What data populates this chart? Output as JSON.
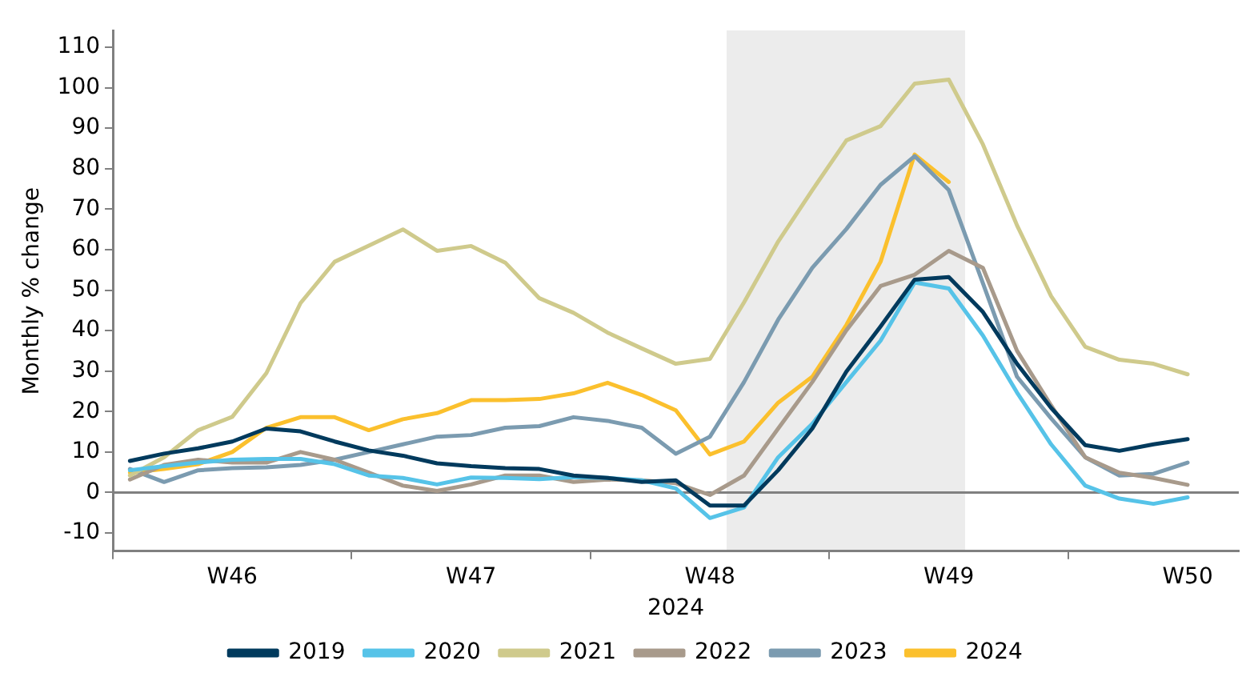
{
  "chart_data": {
    "type": "line",
    "xlabel": "2024",
    "ylabel": "Monthly % change",
    "categories": [
      null,
      null,
      null,
      "W46",
      null,
      null,
      null,
      null,
      null,
      null,
      "W47",
      null,
      null,
      null,
      null,
      null,
      null,
      "W48",
      null,
      null,
      null,
      null,
      null,
      null,
      "W49",
      null,
      null,
      null,
      null,
      null,
      null,
      "W50",
      null
    ],
    "ylim": [
      -14.5,
      114
    ],
    "yticks": [
      -10,
      0,
      10,
      20,
      30,
      40,
      50,
      60,
      70,
      80,
      90,
      100,
      110
    ],
    "grid": false,
    "legend": "bottom",
    "marker": "none",
    "line_style": "solid",
    "ref_lines": [
      {
        "axis": "y",
        "value": 0,
        "color": "#808080"
      }
    ],
    "series": [
      {
        "name": "2019",
        "color": "#003a5d",
        "values": [
          7.8,
          9.6,
          10.9,
          12.6,
          15.8,
          15.1,
          12.6,
          10.4,
          9.1,
          7.2,
          6.5,
          6,
          5.8,
          4.2,
          3.6,
          2.6,
          3,
          -3.2,
          -3.2,
          5.5,
          15.8,
          29.9,
          41,
          52.6,
          53.2,
          44.6,
          31.8,
          20.9,
          11.7,
          10.3,
          11.9,
          13.2,
          null
        ]
      },
      {
        "name": "2020",
        "color": "#56c3e8",
        "values": [
          5.5,
          6.5,
          7.4,
          8.1,
          8.3,
          8.3,
          7,
          4.2,
          3.6,
          2,
          3.7,
          3.6,
          3.3,
          3.8,
          3.6,
          3,
          1,
          -6.3,
          -3.7,
          8.7,
          17,
          27.3,
          37.5,
          51.9,
          50.4,
          38.8,
          24.7,
          11.9,
          1.7,
          -1.5,
          -2.8,
          -1.2,
          null
        ]
      },
      {
        "name": "2021",
        "color": "#cfca8c",
        "values": [
          4.2,
          8.7,
          15.4,
          18.7,
          29.5,
          46.8,
          57,
          61,
          65,
          59.7,
          60.9,
          56.8,
          48,
          44.4,
          39.5,
          35.6,
          31.8,
          33,
          47,
          62,
          74.7,
          87,
          90.5,
          101,
          102,
          86,
          66,
          48.5,
          36,
          32.8,
          31.8,
          29.2,
          null
        ]
      },
      {
        "name": "2022",
        "color": "#a89a8b",
        "values": [
          3.2,
          6.8,
          8.1,
          7.4,
          7.4,
          10,
          8.1,
          4.9,
          1.7,
          0.4,
          2,
          4.2,
          4.2,
          2.6,
          3.2,
          3,
          2.3,
          -0.6,
          4.2,
          15.8,
          27.3,
          40.1,
          51,
          53.8,
          59.7,
          55.5,
          35,
          21.5,
          8.7,
          4.9,
          3.6,
          1.9,
          null
        ]
      },
      {
        "name": "2023",
        "color": "#7b9bb0",
        "values": [
          5.8,
          2.6,
          5.5,
          6,
          6.2,
          6.8,
          8.1,
          10,
          11.9,
          13.8,
          14.2,
          16,
          16.4,
          18.6,
          17.7,
          16,
          9.6,
          13.8,
          27.3,
          42.7,
          55.5,
          65.1,
          76,
          83.1,
          74.7,
          51.7,
          28.6,
          18.3,
          8.7,
          4.2,
          4.6,
          7.4,
          null
        ]
      },
      {
        "name": "2024",
        "color": "#fbc02d",
        "values": [
          4.9,
          5.8,
          7,
          10,
          16,
          18.6,
          18.6,
          15.4,
          18.1,
          19.6,
          22.8,
          22.8,
          23.1,
          24.5,
          27.1,
          24.1,
          20.3,
          9.4,
          12.6,
          22.2,
          28.6,
          41.4,
          57,
          83.5,
          76.7,
          null,
          null,
          null,
          null,
          null,
          null,
          null,
          null
        ]
      }
    ]
  }
}
